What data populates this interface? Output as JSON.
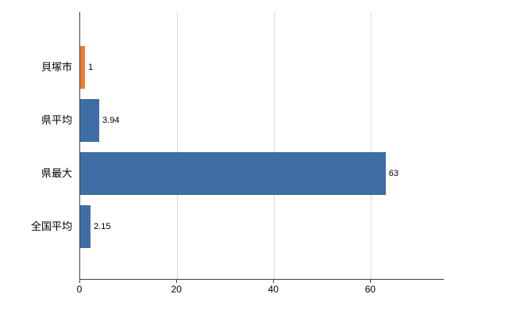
{
  "chart_data": {
    "type": "bar",
    "orientation": "horizontal",
    "title": "",
    "xlabel": "",
    "ylabel": "",
    "categories": [
      "貝塚市",
      "県平均",
      "県最大",
      "全国平均"
    ],
    "values": [
      1,
      3.94,
      63,
      2.15
    ],
    "value_labels": [
      "1",
      "3.94",
      "63",
      "2.15"
    ],
    "bar_colors": [
      "#ed7d31",
      "#3e6ea5",
      "#3e6ea5",
      "#3e6ea5"
    ],
    "xlim": [
      0,
      75
    ],
    "x_ticks": [
      0,
      20,
      40,
      60
    ],
    "x_tick_labels": [
      "0",
      "20",
      "40",
      "60"
    ],
    "grid": "vertical",
    "legend": "none"
  },
  "colors": {
    "grid": "#dcdcdc",
    "axis": "#404040",
    "text": "#000000",
    "background": "#ffffff",
    "bar_blue": "#3e6ea5",
    "bar_orange": "#ed7d31"
  }
}
